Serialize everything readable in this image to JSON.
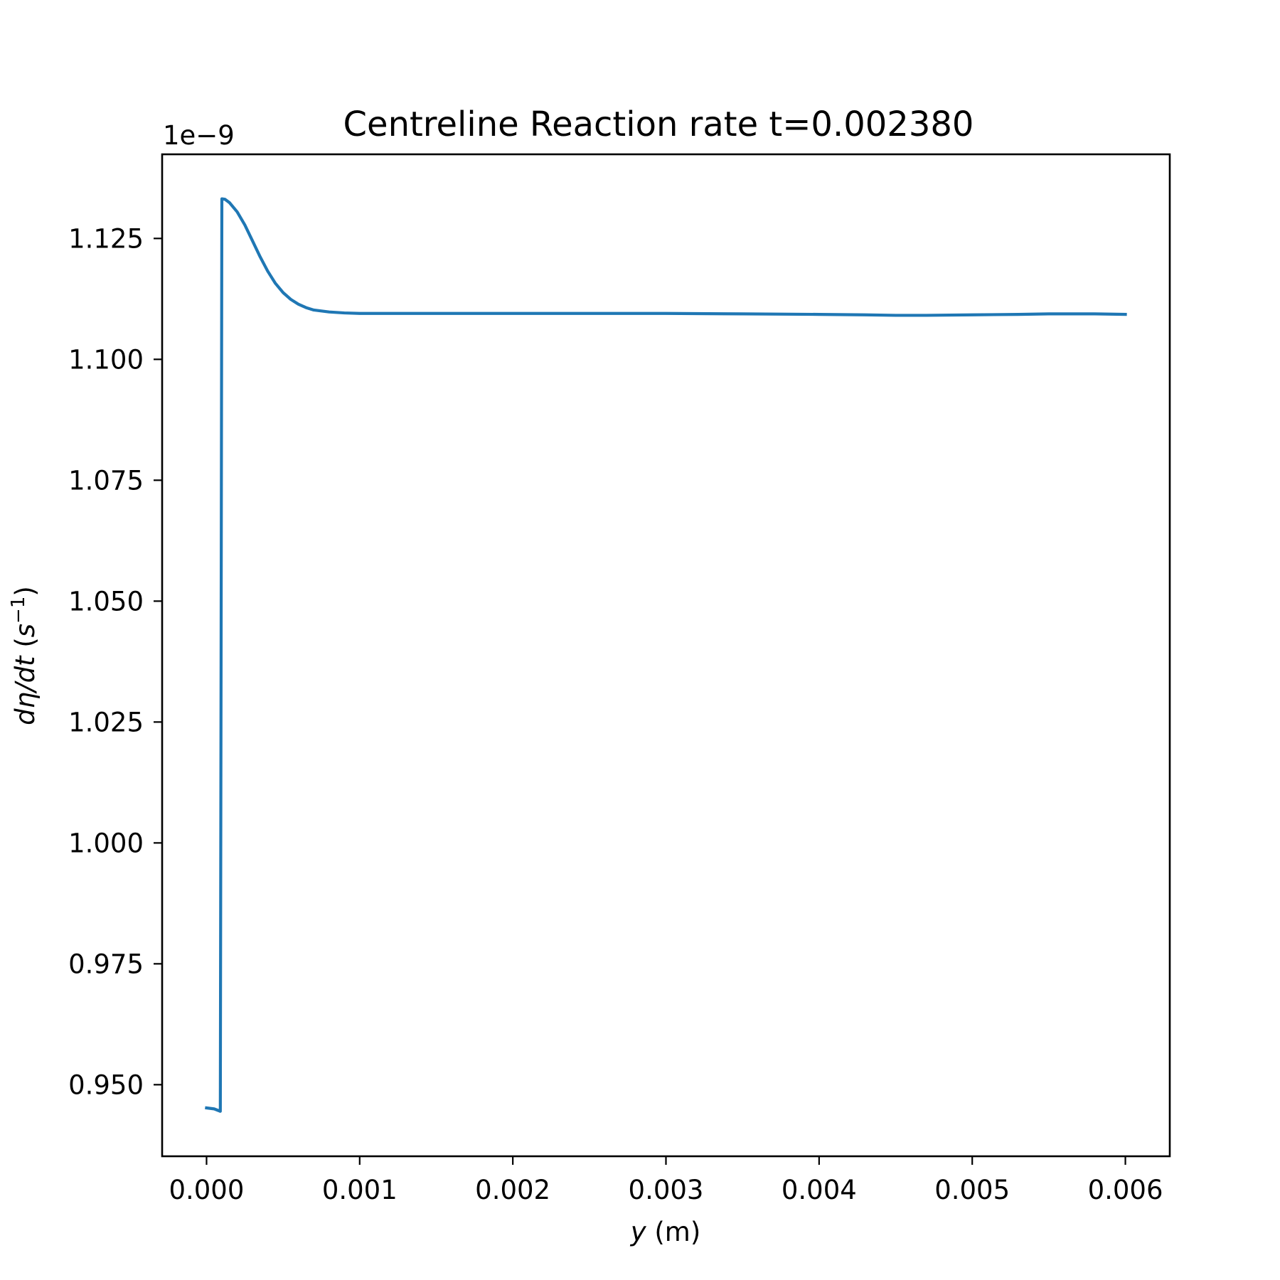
{
  "chart_data": {
    "type": "line",
    "title": "Centreline Reaction rate t=0.002380",
    "xlabel_var": "y",
    "xlabel_unit": " (m)",
    "ylabel_main": "dη/dt",
    "ylabel_unit_base": "s",
    "ylabel_unit_exp": "−1",
    "y_offset_text": "1e−9",
    "y_scale_factor": 1e-09,
    "xlim": [
      -0.00029,
      0.00629
    ],
    "ylim": [
      0.9352,
      1.1424
    ],
    "x_ticks": [
      0.0,
      0.001,
      0.002,
      0.003,
      0.004,
      0.005,
      0.006
    ],
    "x_tick_labels": [
      "0.000",
      "0.001",
      "0.002",
      "0.003",
      "0.004",
      "0.005",
      "0.006"
    ],
    "y_ticks": [
      0.95,
      0.975,
      1.0,
      1.025,
      1.05,
      1.075,
      1.1,
      1.125
    ],
    "y_tick_labels": [
      "0.950",
      "0.975",
      "1.000",
      "1.025",
      "1.050",
      "1.075",
      "1.100",
      "1.125"
    ],
    "grid": false,
    "series": [
      {
        "color": "#1f77b4",
        "x": [
          0.0,
          5e-05,
          9e-05,
          0.0001,
          0.00012,
          0.00015,
          0.0002,
          0.00025,
          0.0003,
          0.00035,
          0.0004,
          0.00045,
          0.0005,
          0.00055,
          0.0006,
          0.00065,
          0.0007,
          0.0008,
          0.0009,
          0.001,
          0.0012,
          0.0015,
          0.002,
          0.0025,
          0.003,
          0.0035,
          0.004,
          0.0043,
          0.0045,
          0.0047,
          0.005,
          0.0053,
          0.0055,
          0.0058,
          0.006
        ],
        "y": [
          0.9452,
          0.945,
          0.9445,
          1.1332,
          1.1331,
          1.1324,
          1.1305,
          1.1278,
          1.1245,
          1.1212,
          1.1182,
          1.1157,
          1.1138,
          1.1124,
          1.1114,
          1.1107,
          1.1102,
          1.1098,
          1.1096,
          1.1095,
          1.1095,
          1.1095,
          1.1095,
          1.1095,
          1.1095,
          1.1094,
          1.1093,
          1.1092,
          1.1091,
          1.1091,
          1.1092,
          1.1093,
          1.1094,
          1.1094,
          1.1093
        ]
      }
    ]
  }
}
